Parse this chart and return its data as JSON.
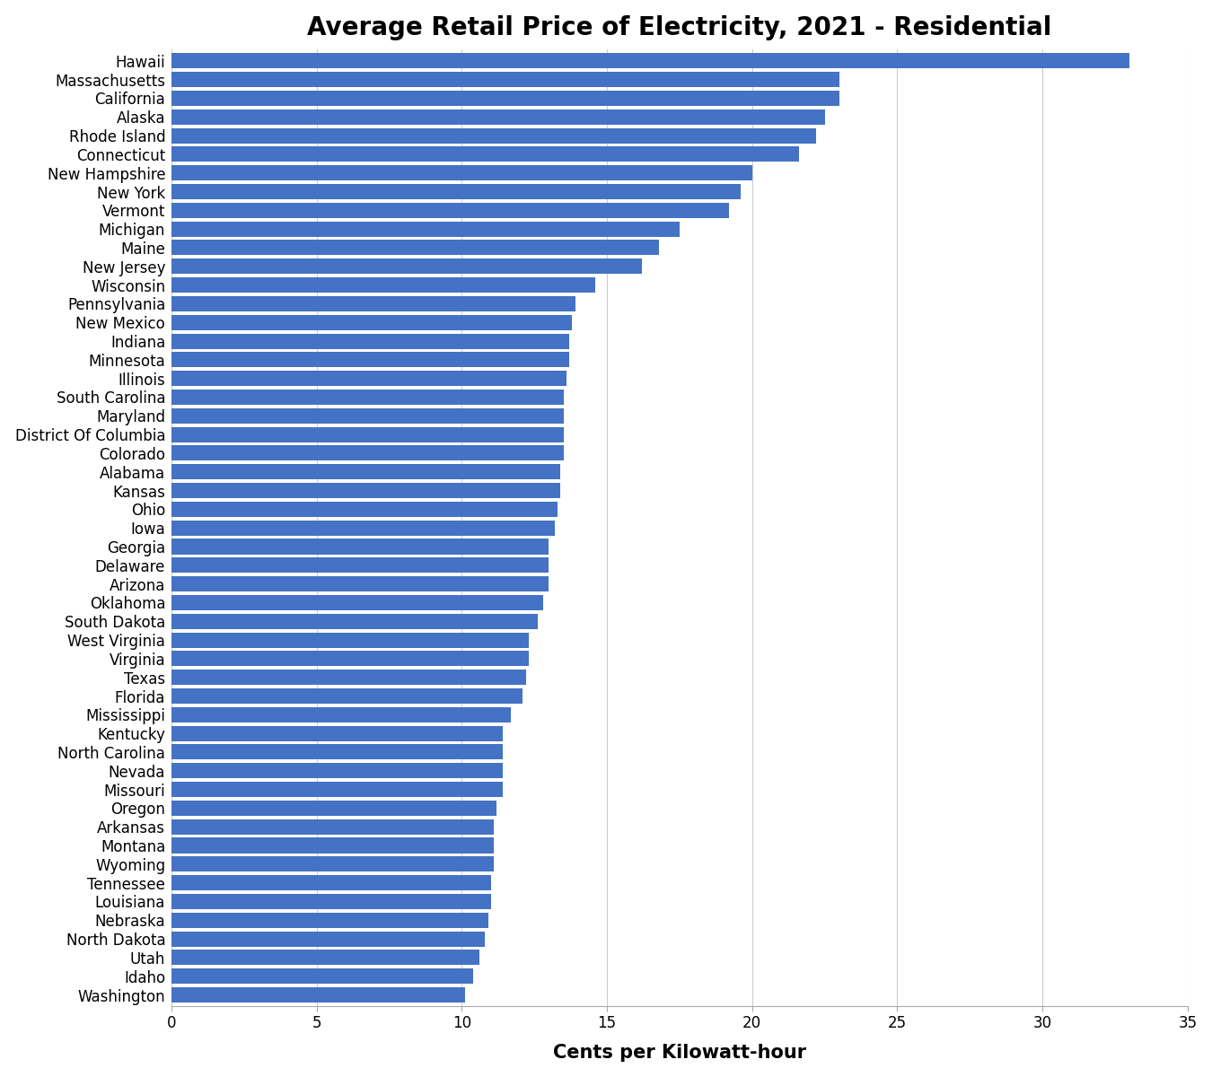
{
  "title": "Average Retail Price of Electricity, 2021 - Residential",
  "xlabel": "Cents per Kilowatt-hour",
  "bar_color": "#4472C4",
  "xlim": [
    0,
    35
  ],
  "xticks": [
    0,
    5,
    10,
    15,
    20,
    25,
    30,
    35
  ],
  "states": [
    "Hawaii",
    "Massachusetts",
    "California",
    "Alaska",
    "Rhode Island",
    "Connecticut",
    "New Hampshire",
    "New York",
    "Vermont",
    "Michigan",
    "Maine",
    "New Jersey",
    "Wisconsin",
    "Pennsylvania",
    "New Mexico",
    "Indiana",
    "Minnesota",
    "Illinois",
    "South Carolina",
    "Maryland",
    "District Of Columbia",
    "Colorado",
    "Alabama",
    "Kansas",
    "Ohio",
    "Iowa",
    "Georgia",
    "Delaware",
    "Arizona",
    "Oklahoma",
    "South Dakota",
    "West Virginia",
    "Virginia",
    "Texas",
    "Florida",
    "Mississippi",
    "Kentucky",
    "North Carolina",
    "Nevada",
    "Missouri",
    "Oregon",
    "Arkansas",
    "Montana",
    "Wyoming",
    "Tennessee",
    "Louisiana",
    "Nebraska",
    "North Dakota",
    "Utah",
    "Idaho",
    "Washington"
  ],
  "values": [
    33.0,
    23.0,
    23.0,
    22.5,
    22.2,
    21.6,
    20.0,
    19.6,
    19.2,
    17.5,
    16.8,
    16.2,
    14.6,
    13.9,
    13.8,
    13.7,
    13.7,
    13.6,
    13.5,
    13.5,
    13.5,
    13.5,
    13.4,
    13.4,
    13.3,
    13.2,
    13.0,
    13.0,
    13.0,
    12.8,
    12.6,
    12.3,
    12.3,
    12.2,
    12.1,
    11.7,
    11.4,
    11.4,
    11.4,
    11.4,
    11.2,
    11.1,
    11.1,
    11.1,
    11.0,
    11.0,
    10.9,
    10.8,
    10.6,
    10.4,
    10.1
  ],
  "title_fontsize": 20,
  "label_fontsize": 15,
  "tick_fontsize": 12,
  "bar_height": 0.82,
  "fig_width": 13.5,
  "fig_height": 12.0
}
